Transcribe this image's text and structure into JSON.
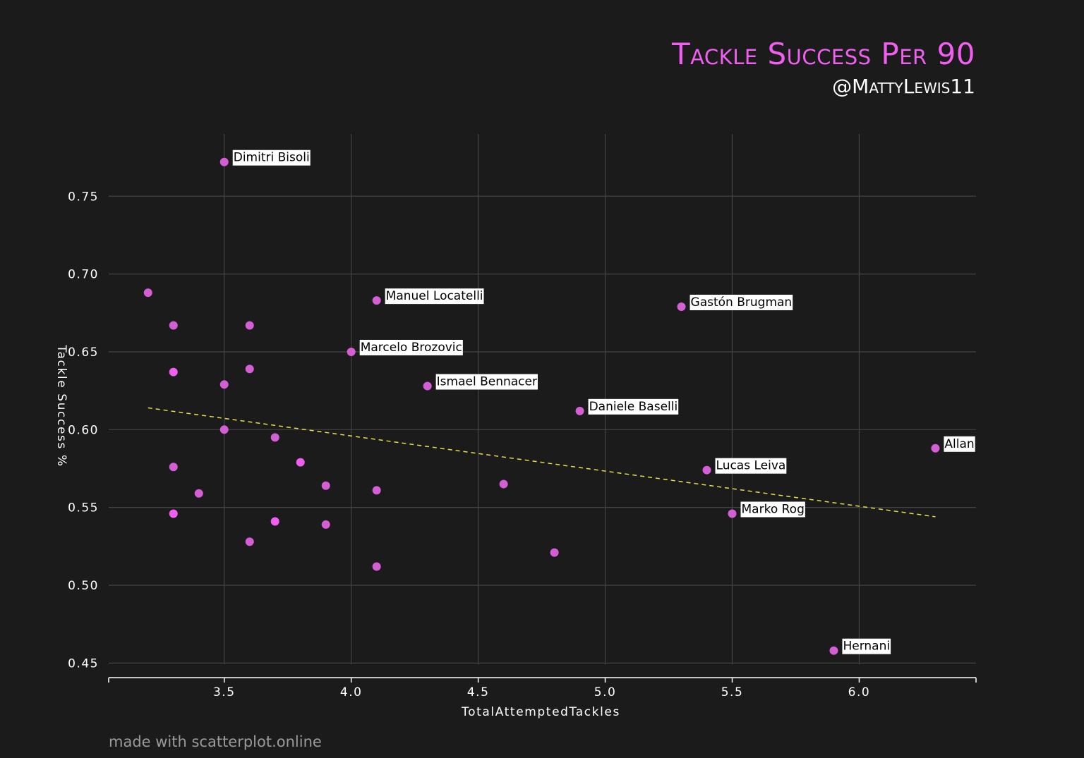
{
  "header": {
    "title": "Tackle Success Per 90",
    "subtitle": "@MattyLewis11"
  },
  "footer": {
    "text": "made with scatterplot.online"
  },
  "colors": {
    "background": "#1b1b1b",
    "point": "#d45fd4",
    "point_highlight": "#f05ff0",
    "trendline": "#e8e04a",
    "grid": "#444444",
    "title": "#f05ff0"
  },
  "chart_data": {
    "type": "scatter",
    "title": "Tackle Success Per 90",
    "subtitle": "@MattyLewis11",
    "xlabel": "TotalAttemptedTackles",
    "ylabel": "Tackle Success %",
    "xlim": [
      3.045,
      6.46
    ],
    "ylim": [
      0.442,
      0.79
    ],
    "xticks": [
      "3.5",
      "4.0",
      "4.5",
      "5.0",
      "5.5",
      "6.0"
    ],
    "xtick_values": [
      3.5,
      4.0,
      4.5,
      5.0,
      5.5,
      6.0
    ],
    "yticks": [
      "0.45",
      "0.50",
      "0.55",
      "0.60",
      "0.65",
      "0.70",
      "0.75"
    ],
    "ytick_values": [
      0.45,
      0.5,
      0.55,
      0.6,
      0.65,
      0.7,
      0.75
    ],
    "grid": true,
    "trendline": {
      "x": [
        3.2,
        6.3
      ],
      "y": [
        0.614,
        0.544
      ],
      "style": "dashed"
    },
    "points": [
      {
        "x": 3.5,
        "y": 0.772,
        "label": "Dimitri Bisoli"
      },
      {
        "x": 4.1,
        "y": 0.683,
        "label": "Manuel Locatelli"
      },
      {
        "x": 5.3,
        "y": 0.679,
        "label": "Gastón Brugman"
      },
      {
        "x": 4.0,
        "y": 0.65,
        "label": "Marcelo Brozovic"
      },
      {
        "x": 4.3,
        "y": 0.628,
        "label": "Ismael Bennacer"
      },
      {
        "x": 4.9,
        "y": 0.612,
        "label": "Daniele Baselli"
      },
      {
        "x": 6.3,
        "y": 0.588,
        "label": "Allan"
      },
      {
        "x": 5.4,
        "y": 0.574,
        "label": "Lucas Leiva"
      },
      {
        "x": 5.5,
        "y": 0.546,
        "label": "Marko Rog"
      },
      {
        "x": 5.9,
        "y": 0.458,
        "label": "Hernani"
      },
      {
        "x": 3.2,
        "y": 0.688,
        "label": ""
      },
      {
        "x": 3.3,
        "y": 0.667,
        "label": ""
      },
      {
        "x": 3.6,
        "y": 0.667,
        "label": ""
      },
      {
        "x": 3.3,
        "y": 0.637,
        "label": "",
        "highlight": true
      },
      {
        "x": 3.6,
        "y": 0.639,
        "label": ""
      },
      {
        "x": 3.5,
        "y": 0.629,
        "label": ""
      },
      {
        "x": 3.5,
        "y": 0.6,
        "label": ""
      },
      {
        "x": 3.7,
        "y": 0.595,
        "label": ""
      },
      {
        "x": 3.8,
        "y": 0.579,
        "label": "",
        "highlight": true
      },
      {
        "x": 3.3,
        "y": 0.576,
        "label": ""
      },
      {
        "x": 3.9,
        "y": 0.564,
        "label": ""
      },
      {
        "x": 4.1,
        "y": 0.561,
        "label": ""
      },
      {
        "x": 4.6,
        "y": 0.565,
        "label": ""
      },
      {
        "x": 3.4,
        "y": 0.559,
        "label": ""
      },
      {
        "x": 3.3,
        "y": 0.546,
        "label": "",
        "highlight": true
      },
      {
        "x": 3.7,
        "y": 0.541,
        "label": "",
        "highlight": true
      },
      {
        "x": 3.9,
        "y": 0.539,
        "label": ""
      },
      {
        "x": 3.6,
        "y": 0.528,
        "label": ""
      },
      {
        "x": 4.8,
        "y": 0.521,
        "label": ""
      },
      {
        "x": 4.1,
        "y": 0.512,
        "label": ""
      }
    ]
  }
}
